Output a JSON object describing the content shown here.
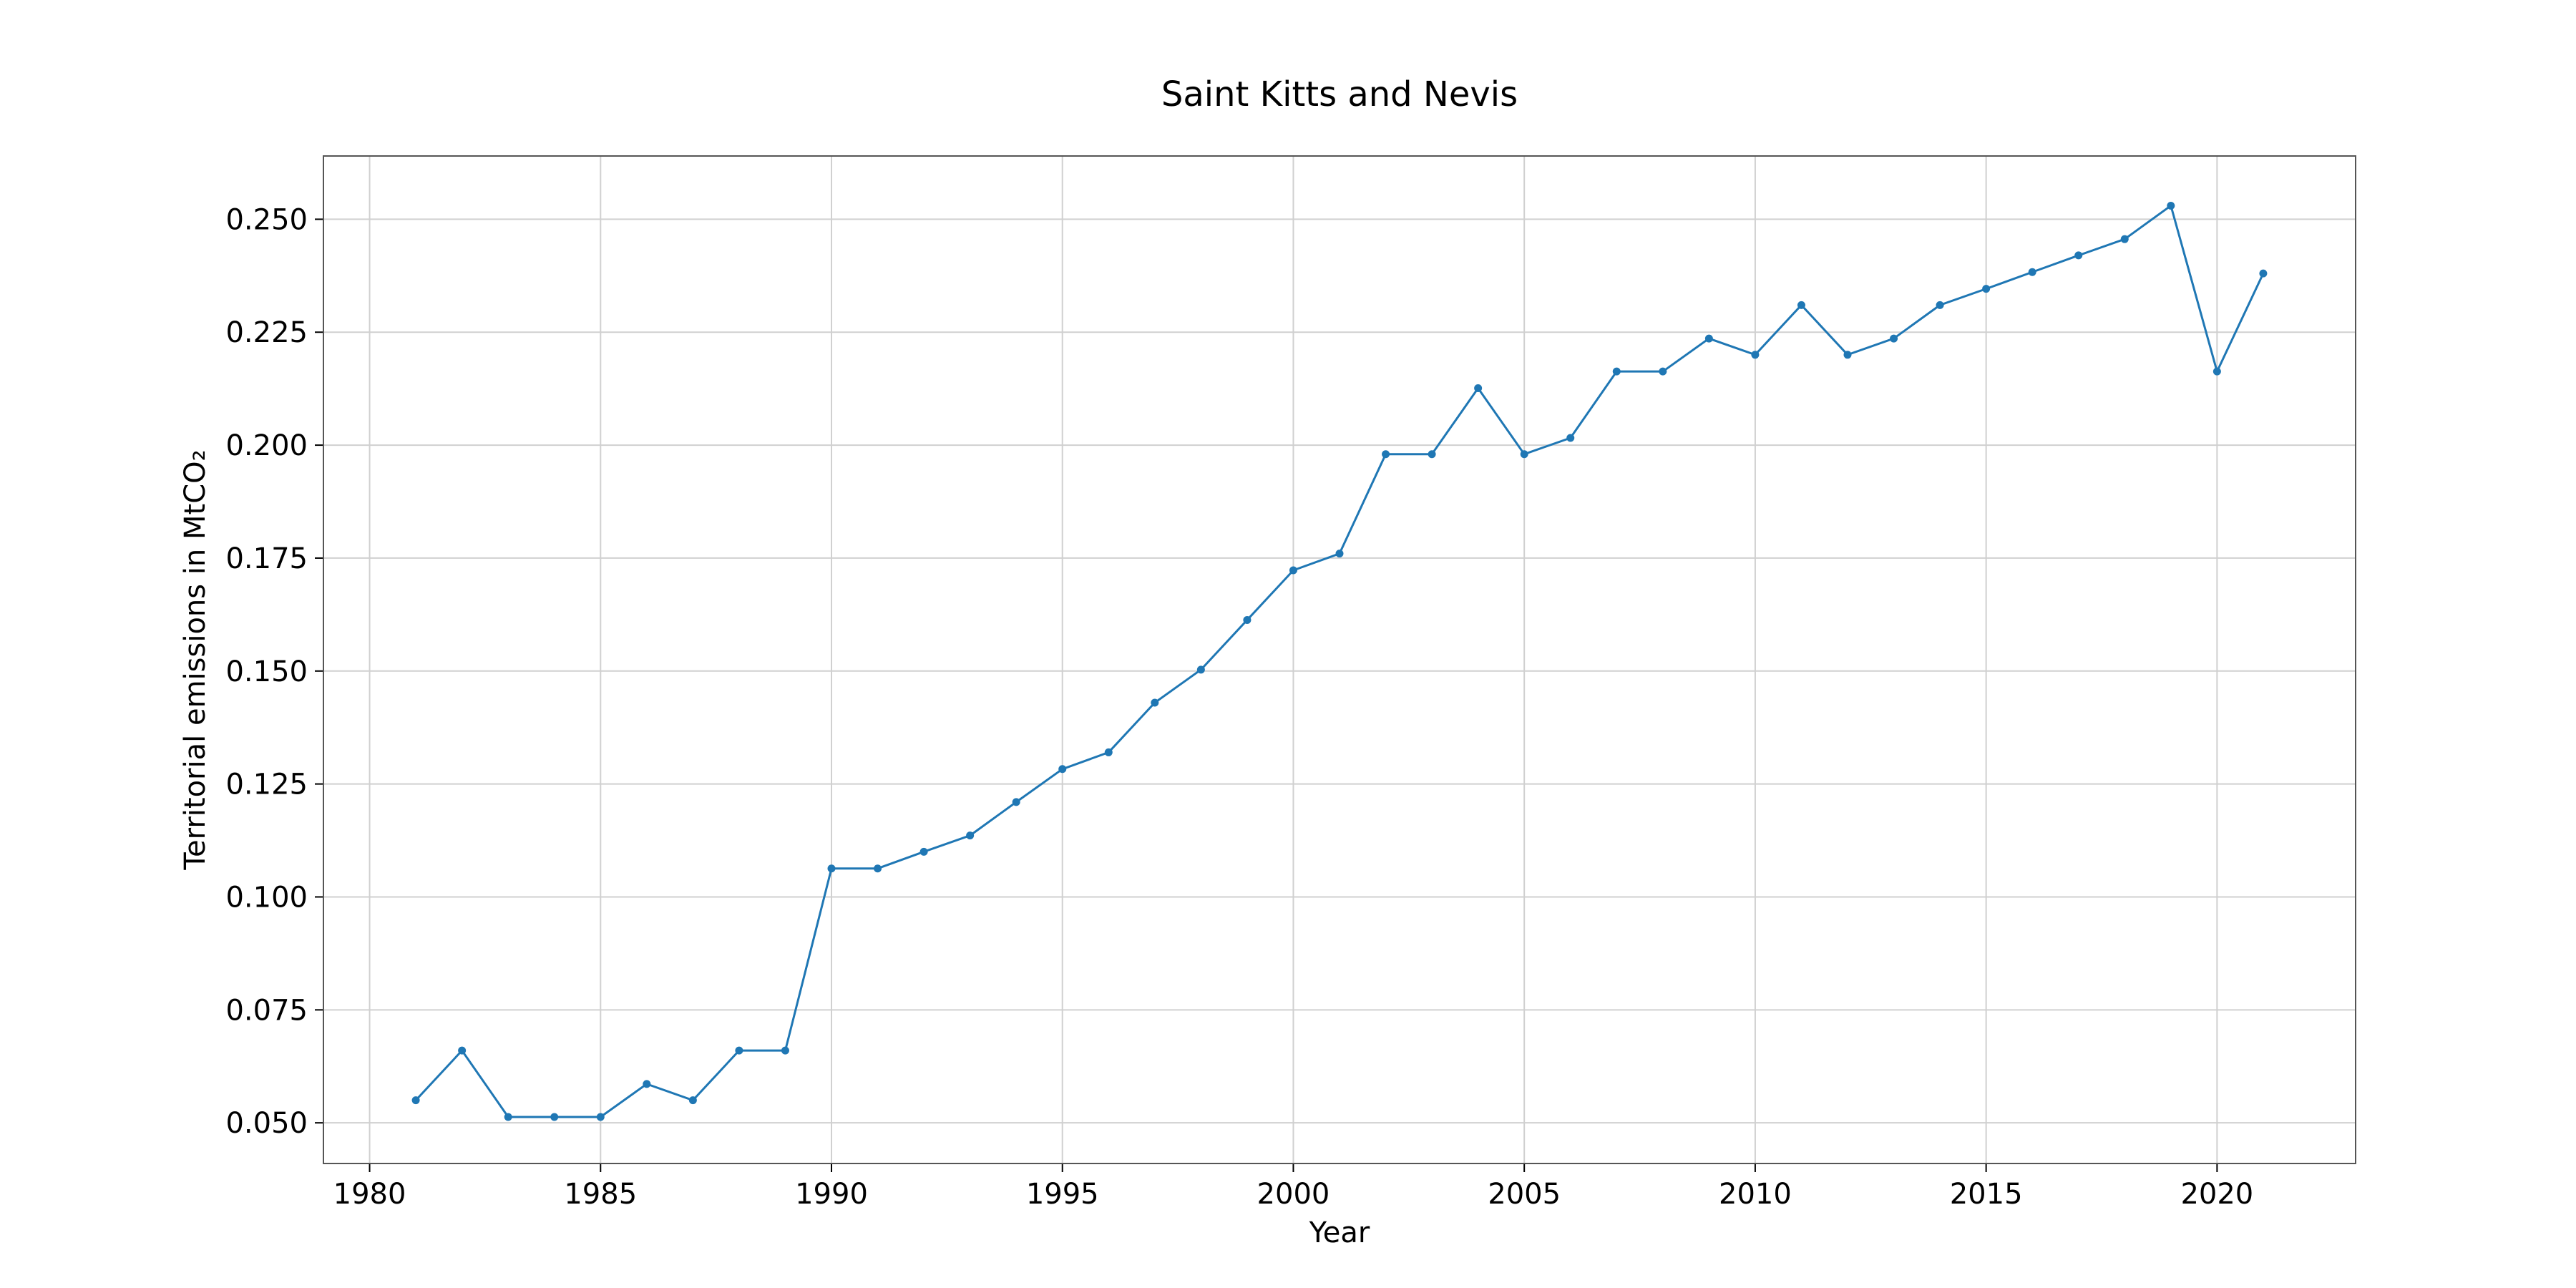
{
  "chart_data": {
    "type": "line",
    "title": "Saint Kitts and Nevis",
    "xlabel": "Year",
    "ylabel": "Territorial emissions in MtCO₂",
    "xlim": [
      1979,
      2023
    ],
    "ylim": [
      0.041,
      0.264
    ],
    "xticks": [
      1980,
      1985,
      1990,
      1995,
      2000,
      2005,
      2010,
      2015,
      2020
    ],
    "yticks": [
      0.05,
      0.075,
      0.1,
      0.125,
      0.15,
      0.175,
      0.2,
      0.225,
      0.25
    ],
    "ytick_labels": [
      "0.050",
      "0.075",
      "0.100",
      "0.125",
      "0.150",
      "0.175",
      "0.200",
      "0.225",
      "0.250"
    ],
    "grid": true,
    "color": "#1f77b4",
    "x": [
      1981,
      1982,
      1983,
      1984,
      1985,
      1986,
      1987,
      1988,
      1989,
      1990,
      1991,
      1992,
      1993,
      1994,
      1995,
      1996,
      1997,
      1998,
      1999,
      2000,
      2001,
      2002,
      2003,
      2004,
      2005,
      2006,
      2007,
      2008,
      2009,
      2010,
      2011,
      2012,
      2013,
      2014,
      2015,
      2016,
      2017,
      2018,
      2019,
      2020,
      2021
    ],
    "series": [
      {
        "values": [
          0.055,
          0.066,
          0.0513,
          0.0513,
          0.0513,
          0.0586,
          0.055,
          0.066,
          0.066,
          0.1063,
          0.1063,
          0.11,
          0.1136,
          0.121,
          0.1283,
          0.132,
          0.143,
          0.1503,
          0.1613,
          0.1723,
          0.176,
          0.198,
          0.198,
          0.2126,
          0.198,
          0.2016,
          0.2163,
          0.2163,
          0.2236,
          0.22,
          0.231,
          0.22,
          0.2236,
          0.231,
          0.2346,
          0.2383,
          0.242,
          0.2456,
          0.253,
          0.2163,
          0.238
        ]
      }
    ]
  }
}
